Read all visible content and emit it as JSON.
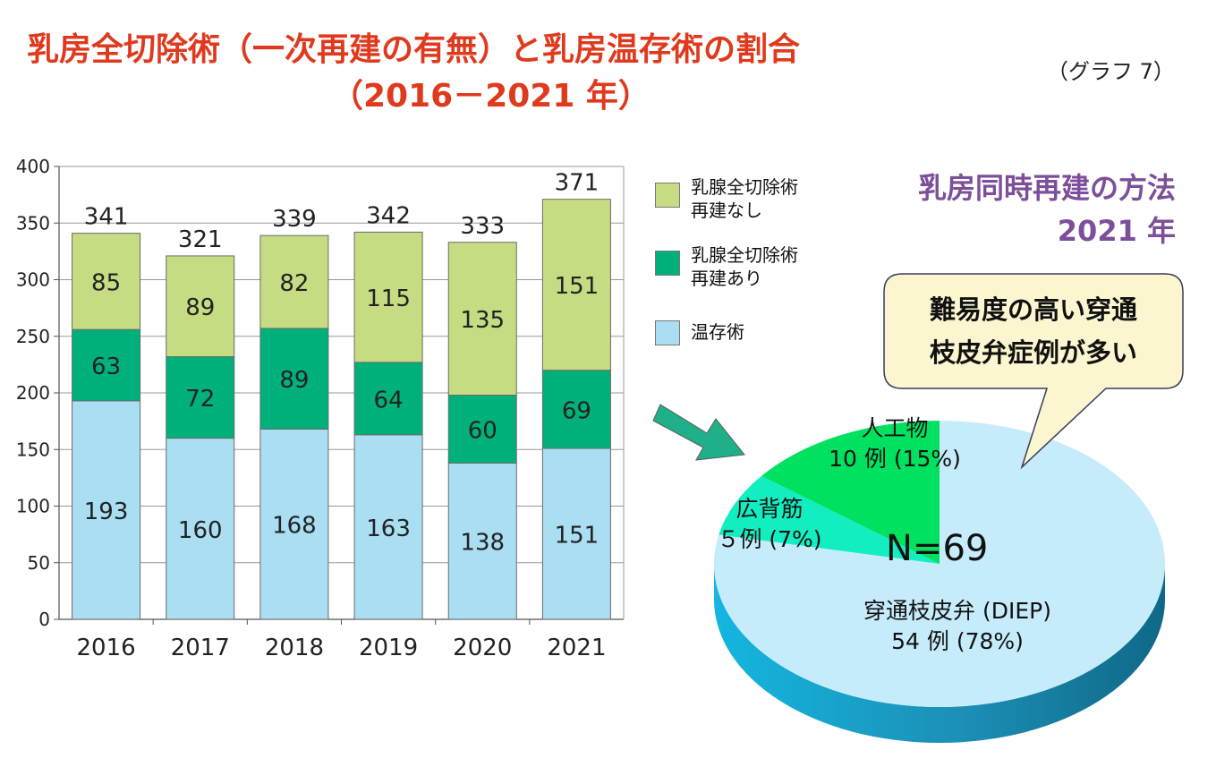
{
  "title": {
    "line1": "乳房全切除術（一次再建の有無）と乳房温存術の割合",
    "line2": "（2016－2021 年）"
  },
  "graph_number": "（グラフ 7）",
  "chart_data": [
    {
      "type": "bar",
      "stacked": true,
      "categories": [
        "2016",
        "2017",
        "2018",
        "2019",
        "2020",
        "2021"
      ],
      "series": [
        {
          "name": "温存術",
          "color": "#a9def3",
          "values": [
            193,
            160,
            168,
            163,
            138,
            151
          ]
        },
        {
          "name": "乳腺全切除術 再建あり",
          "color": "#00b07a",
          "values": [
            63,
            72,
            89,
            64,
            60,
            69
          ]
        },
        {
          "name": "乳腺全切除術 再建なし",
          "color": "#c6dc82",
          "values": [
            85,
            89,
            82,
            115,
            135,
            151
          ]
        }
      ],
      "totals": [
        341,
        321,
        339,
        342,
        333,
        371
      ],
      "ylim": [
        0,
        400
      ],
      "yticks": [
        0,
        50,
        100,
        150,
        200,
        250,
        300,
        350,
        400
      ],
      "grid": true,
      "legend": [
        {
          "line1": "乳腺全切除術",
          "line2": "再建なし",
          "color": "#c6dc82"
        },
        {
          "line1": "乳腺全切除術",
          "line2": "再建あり",
          "color": "#00b07a"
        },
        {
          "line1": "温存術",
          "line2": "",
          "color": "#a9def3"
        }
      ],
      "legend_position": "right"
    },
    {
      "type": "pie",
      "title_line1": "乳房同時再建の方法",
      "title_line2": "2021 年",
      "total_label": "N=69",
      "slices": [
        {
          "name": "穿通枝皮弁 (DIEP)",
          "count": 54,
          "count_label": "54 例 (78%)",
          "percent": 78,
          "color": "#c6ecfb",
          "side_color": "#1e9fc4"
        },
        {
          "name": "広背筋",
          "count": 5,
          "count_label": "５例 (7%)",
          "percent": 7,
          "color": "#12eec0",
          "side_color": "#0aa88a"
        },
        {
          "name": "人工物",
          "count": 10,
          "count_label": "10 例 (15%)",
          "percent": 15,
          "color": "#00e160",
          "side_color": "#00a040"
        }
      ],
      "callout": {
        "line1": "難易度の高い穿通",
        "line2": "枝皮弁症例が多い",
        "color": "#fbf6d0"
      },
      "arrow_color": "#1fb08a"
    }
  ]
}
